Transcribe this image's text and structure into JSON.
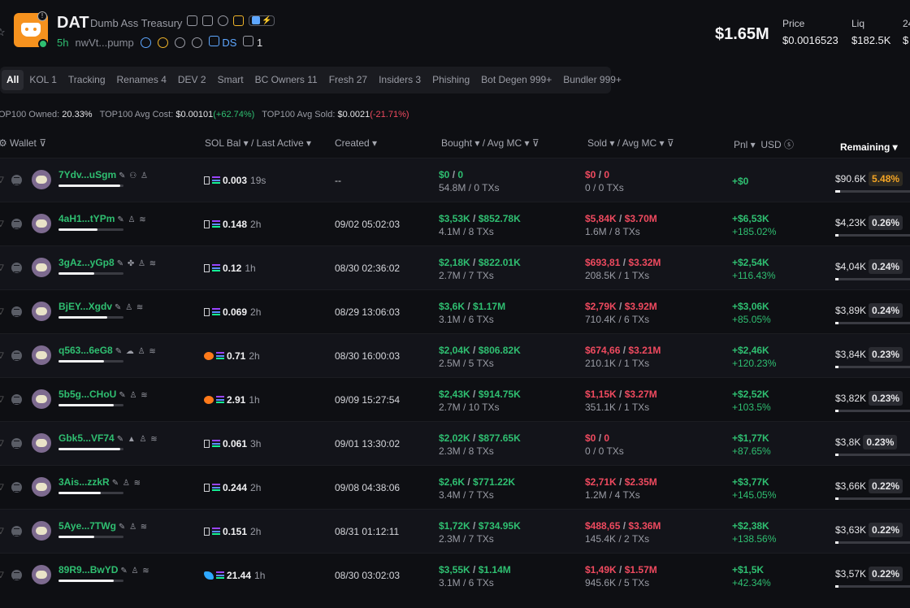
{
  "token": {
    "ticker": "DAT",
    "name": "Dumb Ass Treasury",
    "age": "5h",
    "address": "nwVt...pump",
    "ds_label": "DS",
    "holders_icon_count": "1",
    "market_cap": "$1.65M",
    "price_label": "Price",
    "price": "$0.0016523",
    "liq_label": "Liq",
    "liq": "$182.5K",
    "extra_label": "24",
    "extra_value": "$"
  },
  "tabs": [
    {
      "label": "All",
      "active": true
    },
    {
      "label": "KOL 1"
    },
    {
      "label": "Tracking"
    },
    {
      "label": "Renames 4"
    },
    {
      "label": "DEV 2"
    },
    {
      "label": "Smart"
    },
    {
      "label": "BC Owners 11"
    },
    {
      "label": "Fresh 27"
    },
    {
      "label": "Insiders 3"
    },
    {
      "label": "Phishing"
    },
    {
      "label": "Bot Degen 999+"
    },
    {
      "label": "Bundler 999+"
    }
  ],
  "summary": {
    "owned_label": "OP100 Owned:",
    "owned": "20.33%",
    "avg_cost_label": "TOP100 Avg Cost:",
    "avg_cost": "$0.00101",
    "avg_cost_change": "(+62.74%)",
    "avg_sold_label": "TOP100 Avg Sold:",
    "avg_sold": "$0.0021",
    "avg_sold_change": "(-21.71%)"
  },
  "columns": {
    "wallet": "Wallet",
    "sol_bal": "SOL Bal",
    "last_active": "/ Last Active",
    "created": "Created",
    "bought": "Bought",
    "bought_avg": "/ Avg MC",
    "sold": "Sold",
    "sold_avg": "/ Avg MC",
    "pnl": "Pnl",
    "usd": "USD",
    "remaining": "Remaining"
  },
  "rows": [
    {
      "wallet": "7Ydv...uSgm",
      "icons": "✎ ⚇ ♙",
      "bar": 0.95,
      "sol_icon": "box",
      "sol": "0.003",
      "active": "19s",
      "created": "--",
      "bought": "$0",
      "bought_avg": "0",
      "bought_sub": "54.8M / 0 TXs",
      "sold": "$0",
      "sold_avg": "0",
      "sold_sub": "0 / 0 TXs",
      "pnl": "+$0",
      "pnl_pct": "",
      "remaining": "$90.6K",
      "rem_pct": "5.48%",
      "rem_hi": true,
      "rem_bar": 0.06
    },
    {
      "wallet": "4aH1...tYPm",
      "icons": "✎ ♙ ≋",
      "bar": 0.6,
      "sol_icon": "box",
      "sol": "0.148",
      "active": "2h",
      "created": "09/02 05:02:03",
      "bought": "$3,53K",
      "bought_avg": "$852.78K",
      "bought_sub": "4.1M / 8 TXs",
      "sold": "$5,84K",
      "sold_avg": "$3.70M",
      "sold_sub": "1.6M / 8 TXs",
      "pnl": "+$6,53K",
      "pnl_pct": "+185.02%",
      "remaining": "$4,23K",
      "rem_pct": "0.26%",
      "rem_hi": false,
      "rem_bar": 0.02
    },
    {
      "wallet": "3gAz...yGp8",
      "icons": "✎ ✤ ♙ ≋",
      "bar": 0.55,
      "sol_icon": "box",
      "sol": "0.12",
      "active": "1h",
      "created": "08/30 02:36:02",
      "bought": "$2,18K",
      "bought_avg": "$822.01K",
      "bought_sub": "2.7M / 7 TXs",
      "sold": "$693,81",
      "sold_avg": "$3.32M",
      "sold_sub": "208.5K / 1 TXs",
      "pnl": "+$2,54K",
      "pnl_pct": "+116.43%",
      "remaining": "$4,04K",
      "rem_pct": "0.24%",
      "rem_hi": false,
      "rem_bar": 0.02
    },
    {
      "wallet": "BjEY...Xgdv",
      "icons": "✎ ♙ ≋",
      "bar": 0.75,
      "sol_icon": "box",
      "sol": "0.069",
      "active": "2h",
      "created": "08/29 13:06:03",
      "bought": "$3,6K",
      "bought_avg": "$1.17M",
      "bought_sub": "3.1M / 6 TXs",
      "sold": "$2,79K",
      "sold_avg": "$3.92M",
      "sold_sub": "710.4K / 6 TXs",
      "pnl": "+$3,06K",
      "pnl_pct": "+85.05%",
      "remaining": "$3,89K",
      "rem_pct": "0.24%",
      "rem_hi": false,
      "rem_bar": 0.02
    },
    {
      "wallet": "q563...6eG8",
      "icons": "✎ ☁ ♙ ≋",
      "bar": 0.7,
      "sol_icon": "fox",
      "sol": "0.71",
      "active": "2h",
      "created": "08/30 16:00:03",
      "bought": "$2,04K",
      "bought_avg": "$806.82K",
      "bought_sub": "2.5M / 5 TXs",
      "sold": "$674,66",
      "sold_avg": "$3.21M",
      "sold_sub": "210.1K / 1 TXs",
      "pnl": "+$2,46K",
      "pnl_pct": "+120.23%",
      "remaining": "$3,84K",
      "rem_pct": "0.23%",
      "rem_hi": false,
      "rem_bar": 0.02
    },
    {
      "wallet": "5b5g...CHoU",
      "icons": "✎ ♙ ≋",
      "bar": 0.85,
      "sol_icon": "fox",
      "sol": "2.91",
      "active": "1h",
      "created": "09/09 15:27:54",
      "bought": "$2,43K",
      "bought_avg": "$914.75K",
      "bought_sub": "2.7M / 10 TXs",
      "sold": "$1,15K",
      "sold_avg": "$3.27M",
      "sold_sub": "351.1K / 1 TXs",
      "pnl": "+$2,52K",
      "pnl_pct": "+103.5%",
      "remaining": "$3,82K",
      "rem_pct": "0.23%",
      "rem_hi": false,
      "rem_bar": 0.02
    },
    {
      "wallet": "Gbk5...VF74",
      "icons": "✎ ▲ ♙ ≋",
      "bar": 0.95,
      "sol_icon": "box",
      "sol": "0.061",
      "active": "3h",
      "created": "09/01 13:30:02",
      "bought": "$2,02K",
      "bought_avg": "$877.65K",
      "bought_sub": "2.3M / 8 TXs",
      "sold": "$0",
      "sold_avg": "0",
      "sold_sub": "0 / 0 TXs",
      "pnl": "+$1,77K",
      "pnl_pct": "+87.65%",
      "remaining": "$3,8K",
      "rem_pct": "0.23%",
      "rem_hi": false,
      "rem_bar": 0.02
    },
    {
      "wallet": "3Ais...zzkR",
      "icons": "✎ ♙ ≋",
      "bar": 0.65,
      "sol_icon": "box",
      "sol": "0.244",
      "active": "2h",
      "created": "09/08 04:38:06",
      "bought": "$2,6K",
      "bought_avg": "$771.22K",
      "bought_sub": "3.4M / 7 TXs",
      "sold": "$2,71K",
      "sold_avg": "$2.35M",
      "sold_sub": "1.2M / 4 TXs",
      "pnl": "+$3,77K",
      "pnl_pct": "+145.05%",
      "remaining": "$3,66K",
      "rem_pct": "0.22%",
      "rem_hi": false,
      "rem_bar": 0.02
    },
    {
      "wallet": "5Aye...7TWg",
      "icons": "✎ ♙ ≋",
      "bar": 0.55,
      "sol_icon": "box",
      "sol": "0.151",
      "active": "2h",
      "created": "08/31 01:12:11",
      "bought": "$1,72K",
      "bought_avg": "$734.95K",
      "bought_sub": "2.3M / 7 TXs",
      "sold": "$488,65",
      "sold_avg": "$3.36M",
      "sold_sub": "145.4K / 2 TXs",
      "pnl": "+$2,38K",
      "pnl_pct": "+138.56%",
      "remaining": "$3,63K",
      "rem_pct": "0.22%",
      "rem_hi": false,
      "rem_bar": 0.02
    },
    {
      "wallet": "89R9...BwYD",
      "icons": "✎ ♙ ≋",
      "bar": 0.85,
      "sol_icon": "dolphin",
      "sol": "21.44",
      "active": "1h",
      "created": "08/30 03:02:03",
      "bought": "$3,55K",
      "bought_avg": "$1.14M",
      "bought_sub": "3.1M / 6 TXs",
      "sold": "$1,49K",
      "sold_avg": "$1.57M",
      "sold_sub": "945.6K / 5 TXs",
      "pnl": "+$1,5K",
      "pnl_pct": "+42.34%",
      "remaining": "$3,57K",
      "rem_pct": "0.22%",
      "rem_hi": false,
      "rem_bar": 0.02
    }
  ]
}
